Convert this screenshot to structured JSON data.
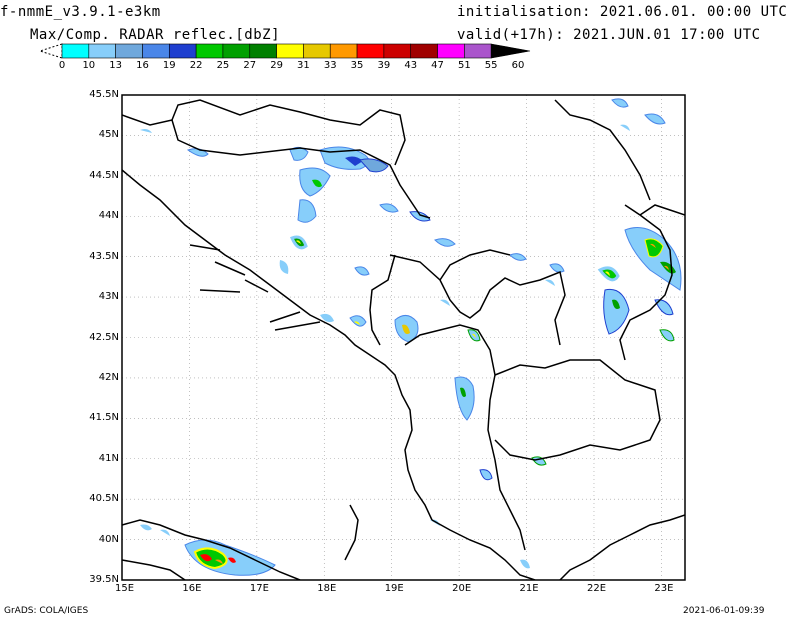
{
  "header": {
    "model": "f-nmmE_v3.9.1-e3km",
    "field": "Max/Comp. RADAR reflec.[dbZ]",
    "init": "initialisation: 2021.06.01. 00:00 UTC",
    "valid": "valid(+17h): 2021.JUN.01 17:00 UTC"
  },
  "colorbar": {
    "labels": [
      "0",
      "10",
      "13",
      "16",
      "19",
      "22",
      "25",
      "27",
      "29",
      "31",
      "33",
      "35",
      "39",
      "43",
      "47",
      "51",
      "55",
      "60"
    ],
    "colors": [
      "#00ffff",
      "#87cefa",
      "#6fa8dc",
      "#4a86e8",
      "#1f3fcf",
      "#00c800",
      "#00a000",
      "#008000",
      "#ffff00",
      "#e6c800",
      "#ff9900",
      "#ff0000",
      "#cc0000",
      "#a00000",
      "#ff00ff",
      "#aa55cc",
      "#000000"
    ]
  },
  "map": {
    "lat_labels": [
      "45.5N",
      "45N",
      "44.5N",
      "44N",
      "43.5N",
      "43N",
      "42.5N",
      "42N",
      "41.5N",
      "41N",
      "40.5N",
      "40N",
      "39.5N"
    ],
    "lon_labels": [
      "15E",
      "16E",
      "17E",
      "18E",
      "19E",
      "20E",
      "21E",
      "22E",
      "23E"
    ],
    "grid": true
  },
  "footer": {
    "left": "GrADS: COLA/IGES",
    "right": "2021-06-01-09:39"
  }
}
